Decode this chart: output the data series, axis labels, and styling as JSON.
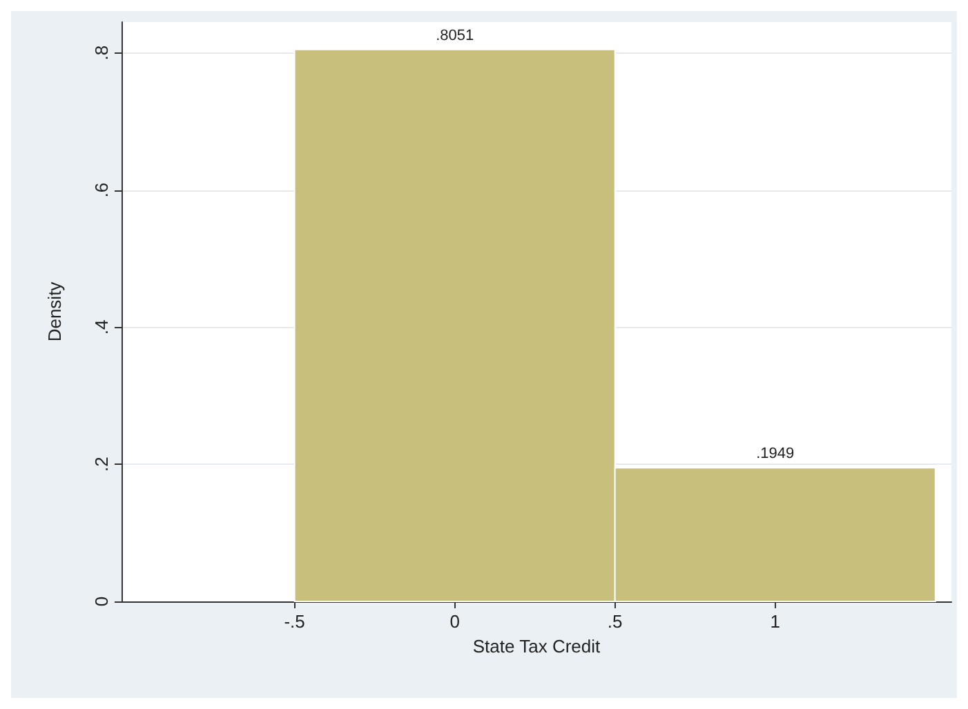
{
  "chart_data": {
    "type": "histogram",
    "xlabel": "State Tax Credit",
    "ylabel": "Density",
    "bins": [
      -0.5,
      0.5,
      1.5
    ],
    "values": [
      0.8051,
      0.1949
    ],
    "value_labels": [
      ".8051",
      ".1949"
    ],
    "color": "#c9bf7c",
    "xlim": [
      -1.04,
      1.55
    ],
    "xticks": [
      {
        "value": -0.5,
        "label": "-.5"
      },
      0,
      {
        "value": 0.5,
        "label": ".5"
      },
      1
    ],
    "ylim": [
      0,
      0.845
    ],
    "yticks": [
      0,
      {
        "value": 0.2,
        "label": ".2"
      },
      {
        "value": 0.4,
        "label": ".4"
      },
      {
        "value": 0.6,
        "label": ".6"
      },
      {
        "value": 0.8,
        "label": ".8"
      }
    ],
    "grid": "y"
  }
}
